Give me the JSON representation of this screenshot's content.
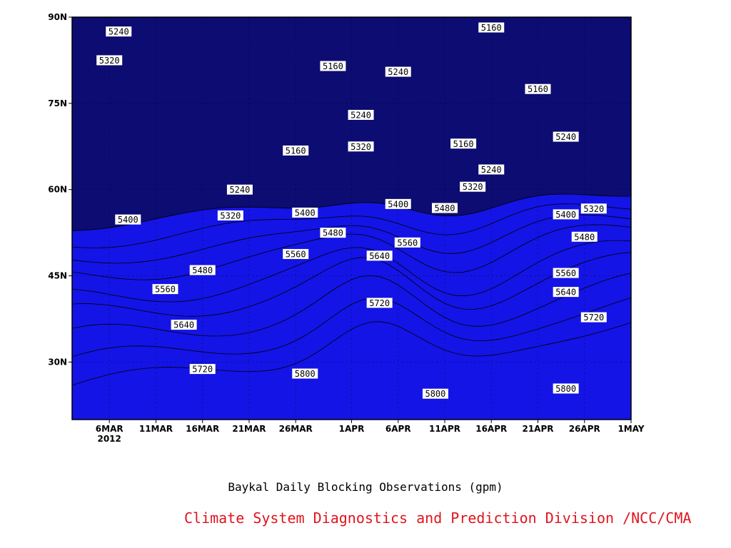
{
  "chart_data": {
    "type": "filled-contour",
    "title": "Baykal Daily Blocking Observations (gpm)",
    "x_ticks": [
      "6MAR",
      "11MAR",
      "16MAR",
      "21MAR",
      "26MAR",
      "1APR",
      "6APR",
      "11APR",
      "16APR",
      "21APR",
      "26APR",
      "1MAY"
    ],
    "x_tick_sub": "2012",
    "y_ticks": [
      "30N",
      "45N",
      "60N",
      "75N",
      "90N"
    ],
    "xlim": [
      "2012-03-02",
      "2012-05-01"
    ],
    "ylim": [
      20,
      90
    ],
    "grid": true,
    "levels": [
      5160,
      5240,
      5320,
      5400,
      5480,
      5560,
      5640,
      5720,
      5800
    ],
    "colors": [
      "#0c0c72",
      "#1414e6",
      "#4b4be6",
      "#5a96e6",
      "#64c8fa",
      "#fafa78",
      "#fae6a0",
      "#faa064",
      "#fa7846",
      "#f56e7d"
    ],
    "contour_labels": [
      {
        "value": "5240",
        "date": "2012-03-07",
        "lat": 87.5
      },
      {
        "value": "5320",
        "date": "2012-03-06",
        "lat": 82.5
      },
      {
        "value": "5160",
        "date": "2012-03-30",
        "lat": 81.5
      },
      {
        "value": "5240",
        "date": "2012-04-06",
        "lat": 80.5
      },
      {
        "value": "5160",
        "date": "2012-04-16",
        "lat": 88.2
      },
      {
        "value": "5160",
        "date": "2012-04-21",
        "lat": 77.5
      },
      {
        "value": "5240",
        "date": "2012-04-02",
        "lat": 73.0
      },
      {
        "value": "5160",
        "date": "2012-03-26",
        "lat": 66.8
      },
      {
        "value": "5320",
        "date": "2012-04-02",
        "lat": 67.5
      },
      {
        "value": "5160",
        "date": "2012-04-13",
        "lat": 68.0
      },
      {
        "value": "5240",
        "date": "2012-04-24",
        "lat": 69.2
      },
      {
        "value": "5240",
        "date": "2012-04-16",
        "lat": 63.5
      },
      {
        "value": "5240",
        "date": "2012-03-20",
        "lat": 60.0
      },
      {
        "value": "5320",
        "date": "2012-04-14",
        "lat": 60.5
      },
      {
        "value": "5320",
        "date": "2012-03-19",
        "lat": 55.5
      },
      {
        "value": "5400",
        "date": "2012-03-27",
        "lat": 56.0
      },
      {
        "value": "5400",
        "date": "2012-04-06",
        "lat": 57.5
      },
      {
        "value": "5480",
        "date": "2012-04-11",
        "lat": 56.8
      },
      {
        "value": "5400",
        "date": "2012-04-24",
        "lat": 55.7
      },
      {
        "value": "5320",
        "date": "2012-04-27",
        "lat": 56.7
      },
      {
        "value": "5400",
        "date": "2012-03-08",
        "lat": 54.8
      },
      {
        "value": "5480",
        "date": "2012-03-30",
        "lat": 52.5
      },
      {
        "value": "5480",
        "date": "2012-04-26",
        "lat": 51.8
      },
      {
        "value": "5560",
        "date": "2012-04-07",
        "lat": 50.8
      },
      {
        "value": "5560",
        "date": "2012-03-26",
        "lat": 48.8
      },
      {
        "value": "5640",
        "date": "2012-04-04",
        "lat": 48.5
      },
      {
        "value": "5480",
        "date": "2012-03-16",
        "lat": 46.0
      },
      {
        "value": "5560",
        "date": "2012-04-24",
        "lat": 45.5
      },
      {
        "value": "5560",
        "date": "2012-03-12",
        "lat": 42.7
      },
      {
        "value": "5640",
        "date": "2012-04-24",
        "lat": 42.2
      },
      {
        "value": "5720",
        "date": "2012-04-04",
        "lat": 40.3
      },
      {
        "value": "5720",
        "date": "2012-04-27",
        "lat": 37.8
      },
      {
        "value": "5640",
        "date": "2012-03-14",
        "lat": 36.5
      },
      {
        "value": "5720",
        "date": "2012-03-16",
        "lat": 28.8
      },
      {
        "value": "5800",
        "date": "2012-03-27",
        "lat": 28.0
      },
      {
        "value": "5800",
        "date": "2012-04-10",
        "lat": 24.5
      },
      {
        "value": "5800",
        "date": "2012-04-24",
        "lat": 25.4
      }
    ]
  },
  "credit": {
    "text": "Climate System Diagnostics and Prediction Division /NCC/CMA",
    "color": "#e0141e"
  }
}
